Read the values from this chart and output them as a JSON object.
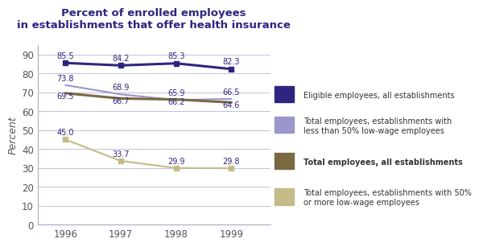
{
  "title": "Percent of enrolled employees\nin establishments that offer health insurance",
  "years": [
    1996,
    1997,
    1998,
    1999
  ],
  "series": [
    {
      "label": "Eligible employees, all establishments",
      "values": [
        85.5,
        84.2,
        85.3,
        82.3
      ],
      "color": "#2e2580",
      "linewidth": 2.2,
      "bold": false,
      "marker": "s",
      "markersize": 5
    },
    {
      "label": "Total employees, establishments with\nless than 50% low-wage employees",
      "values": [
        73.8,
        68.9,
        65.9,
        66.5
      ],
      "color": "#9b96cc",
      "linewidth": 1.5,
      "bold": false,
      "marker": null,
      "markersize": 0
    },
    {
      "label": "Total employees, all establishments",
      "values": [
        69.5,
        66.7,
        66.2,
        64.6
      ],
      "color": "#7a6840",
      "linewidth": 2.2,
      "bold": true,
      "marker": null,
      "markersize": 0
    },
    {
      "label": "Total employees, establishments with 50%\nor more low-wage employees",
      "values": [
        45.0,
        33.7,
        29.9,
        29.8
      ],
      "color": "#c4bb88",
      "linewidth": 1.5,
      "bold": false,
      "marker": "s",
      "markersize": 4
    }
  ],
  "ylabel": "Percent",
  "ylim": [
    0,
    95
  ],
  "yticks": [
    0,
    10,
    20,
    30,
    40,
    50,
    60,
    70,
    80,
    90
  ],
  "title_color": "#2e2580",
  "label_color": "#2e2580",
  "axis_color": "#aaaacc",
  "tick_color": "#555555",
  "background_color": "#ffffff",
  "label_offsets": [
    [
      [
        1996,
        85.5,
        1.8
      ],
      [
        1997,
        84.2,
        1.8
      ],
      [
        1998,
        85.3,
        1.8
      ],
      [
        1999,
        82.3,
        1.8
      ]
    ],
    [
      [
        1996,
        73.8,
        1.5
      ],
      [
        1997,
        68.9,
        1.5
      ],
      [
        1998,
        65.9,
        1.5
      ],
      [
        1999,
        66.5,
        1.5
      ]
    ],
    [
      [
        1996,
        69.5,
        -3.5
      ],
      [
        1997,
        66.7,
        -3.5
      ],
      [
        1998,
        66.2,
        -3.5
      ],
      [
        1999,
        64.6,
        -3.5
      ]
    ],
    [
      [
        1996,
        45.0,
        1.5
      ],
      [
        1997,
        33.7,
        1.5
      ],
      [
        1998,
        29.9,
        1.5
      ],
      [
        1999,
        29.8,
        1.5
      ]
    ]
  ]
}
